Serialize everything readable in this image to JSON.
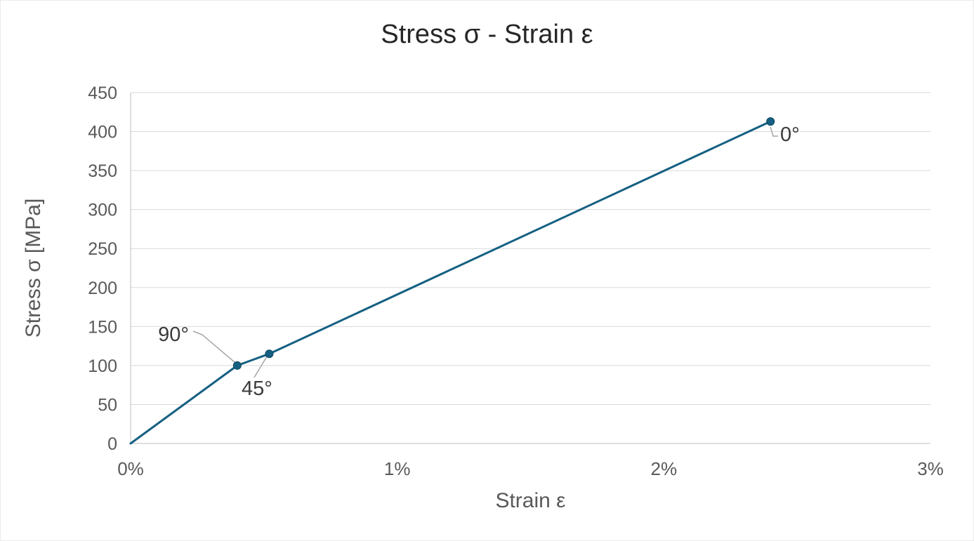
{
  "chart_data": {
    "type": "line",
    "title": "Stress σ - Strain ε",
    "xlabel": "Strain ε",
    "ylabel": "Stress σ [MPa]",
    "xlim": [
      0,
      3
    ],
    "ylim": [
      0,
      450
    ],
    "x_ticks": [
      "0%",
      "1%",
      "2%",
      "3%"
    ],
    "x_tick_values": [
      0,
      1,
      2,
      3
    ],
    "y_ticks": [
      0,
      50,
      100,
      150,
      200,
      250,
      300,
      350,
      400,
      450
    ],
    "grid": "horizontal-only",
    "legend": "none",
    "series": [
      {
        "name": "stress-strain-curve",
        "color": "#156082",
        "points": [
          {
            "x": 0,
            "y": 0
          },
          {
            "x": 0.4,
            "y": 100,
            "label": "90°",
            "marker": true
          },
          {
            "x": 0.52,
            "y": 115,
            "label": "45°",
            "marker": true
          },
          {
            "x": 2.4,
            "y": 413,
            "label": "0°",
            "marker": true
          }
        ]
      }
    ],
    "annotations": [
      "90°",
      "45°",
      "0°"
    ],
    "colors": {
      "line": "#156082",
      "marker": "#156082",
      "marker_border": "#0d475f",
      "gridline": "#D9D9D9",
      "axis_line": "#BFBFBF",
      "tick_label": "#595959",
      "axis_title": "#595959",
      "title": "#262626",
      "leader_line": "#A6A6A6",
      "data_label": "#3B3B3B",
      "background": "#FFFFFF"
    }
  }
}
